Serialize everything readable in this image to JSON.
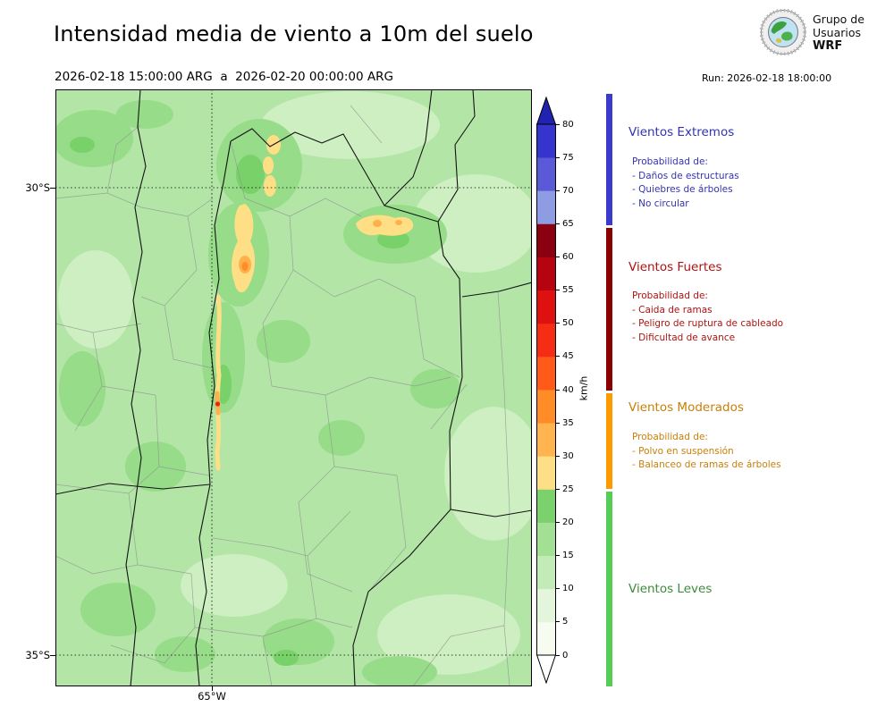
{
  "header": {
    "title": "Intensidad media de viento a 10m del suelo",
    "period": "2026-02-18 15:00:00 ARG  a  2026-02-20 00:00:00 ARG",
    "run_label": "Run: 2026-02-18 18:00:00",
    "logo": {
      "line1": "Grupo de",
      "line2": "Usuarios",
      "line3": "WRF"
    }
  },
  "map": {
    "y_axis_ticks": [
      "30°S",
      "35°S"
    ],
    "x_axis_ticks": [
      "65°W"
    ]
  },
  "colorbar": {
    "unit": "km/h",
    "tick_values": [
      0,
      5,
      10,
      15,
      20,
      25,
      30,
      35,
      40,
      45,
      50,
      55,
      60,
      65,
      70,
      75,
      80
    ],
    "max_value": 80,
    "segments_bottom_to_top": [
      {
        "from": 0,
        "to": 5,
        "color": "#f7fcf0"
      },
      {
        "from": 5,
        "to": 10,
        "color": "#e3f6db"
      },
      {
        "from": 10,
        "to": 15,
        "color": "#c3ebb7"
      },
      {
        "from": 15,
        "to": 20,
        "color": "#a2e094"
      },
      {
        "from": 20,
        "to": 25,
        "color": "#7bd26d"
      },
      {
        "from": 25,
        "to": 30,
        "color": "#ffdf86"
      },
      {
        "from": 30,
        "to": 35,
        "color": "#ffb44f"
      },
      {
        "from": 35,
        "to": 40,
        "color": "#ff8c26"
      },
      {
        "from": 40,
        "to": 45,
        "color": "#ff5a1a"
      },
      {
        "from": 45,
        "to": 50,
        "color": "#f42d14"
      },
      {
        "from": 50,
        "to": 55,
        "color": "#df1010"
      },
      {
        "from": 55,
        "to": 60,
        "color": "#b5040f"
      },
      {
        "from": 60,
        "to": 65,
        "color": "#8a0011"
      },
      {
        "from": 65,
        "to": 70,
        "color": "#8e9ce4"
      },
      {
        "from": 70,
        "to": 75,
        "color": "#5a5ad9"
      },
      {
        "from": 75,
        "to": 80,
        "color": "#3535cd"
      }
    ],
    "over_color": "#2222b0",
    "under_color": "#ffffff"
  },
  "legend": {
    "sections": [
      {
        "title": "Vientos Extremos",
        "bar_color": "#3a3acc",
        "text_color": "#3333b3",
        "items": [
          "Probabilidad de:",
          "- Daños de estructuras",
          "- Quiebres de árboles",
          "- No circular"
        ]
      },
      {
        "title": "Vientos Fuertes",
        "bar_color": "#8b0000",
        "text_color": "#b01212",
        "items": [
          "Probabilidad de:",
          "- Caida de ramas",
          "- Peligro de ruptura de cableado",
          "- Dificultad de avance"
        ]
      },
      {
        "title": "Vientos Moderados",
        "bar_color": "#ff9900",
        "text_color": "#c87f0a",
        "items": [
          "Probabilidad de:",
          "- Polvo en suspensión",
          "- Balanceo de ramas de árboles"
        ]
      },
      {
        "title": "Vientos Leves",
        "bar_color": "#55cc55",
        "text_color": "#3d8b3d",
        "items": []
      }
    ]
  }
}
